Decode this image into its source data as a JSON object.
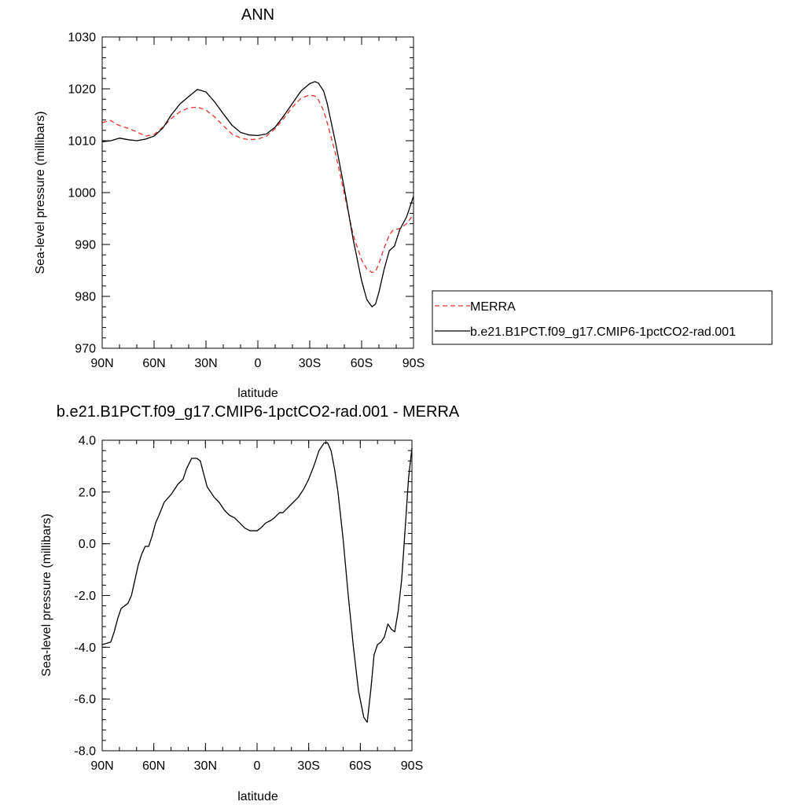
{
  "colors": {
    "merra": "#e8322b",
    "model": "#000000",
    "background": "#ffffff"
  },
  "chart_data": [
    {
      "type": "line",
      "title": "ANN",
      "xlabel": "latitude",
      "ylabel": "Sea-level pressure (millibars)",
      "xlim": [
        -90,
        90
      ],
      "ylim": [
        970,
        1030
      ],
      "x_direction": "90N on left, 90S on right",
      "xticks": [
        {
          "value": -90,
          "label": "90N"
        },
        {
          "value": -60,
          "label": "60N"
        },
        {
          "value": -30,
          "label": "30N"
        },
        {
          "value": 0,
          "label": "0"
        },
        {
          "value": 30,
          "label": "30S"
        },
        {
          "value": 60,
          "label": "60S"
        },
        {
          "value": 90,
          "label": "90S"
        }
      ],
      "yticks": [
        {
          "value": 970,
          "label": "970"
        },
        {
          "value": 980,
          "label": "980"
        },
        {
          "value": 990,
          "label": "990"
        },
        {
          "value": 1000,
          "label": "1000"
        },
        {
          "value": 1010,
          "label": "1010"
        },
        {
          "value": 1020,
          "label": "1020"
        },
        {
          "value": 1030,
          "label": "1030"
        }
      ],
      "grid": false,
      "legend_position": "right",
      "series": [
        {
          "name": "MERRA",
          "style": "dashed",
          "color": "#e8322b",
          "x": [
            -90,
            -85,
            -82,
            -79,
            -75,
            -70,
            -65,
            -60,
            -55,
            -50,
            -45,
            -40,
            -35,
            -30,
            -25,
            -20,
            -15,
            -10,
            -5,
            0,
            5,
            10,
            15,
            20,
            25,
            30,
            33,
            35,
            38,
            40,
            45,
            50,
            55,
            60,
            63,
            66,
            68,
            70,
            73,
            76,
            78,
            80,
            83,
            86,
            90
          ],
          "y": [
            1013.5,
            1013.9,
            1013.2,
            1012.8,
            1012.4,
            1011.7,
            1010.9,
            1011.2,
            1012.6,
            1014.3,
            1015.6,
            1016.3,
            1016.5,
            1015.9,
            1014.6,
            1012.9,
            1011.3,
            1010.5,
            1010.2,
            1010.3,
            1010.9,
            1012.3,
            1014.3,
            1016.5,
            1018.2,
            1018.8,
            1018.6,
            1017.9,
            1015.8,
            1013.6,
            1007.4,
            999.8,
            992.0,
            987.0,
            985.3,
            984.6,
            984.8,
            986.3,
            989.3,
            991.8,
            992.7,
            992.9,
            993.2,
            994.0,
            995.8
          ]
        },
        {
          "name": "b.e21.B1PCT.f09_g17.CMIP6-1pctCO2-rad.001",
          "style": "solid",
          "color": "#000000",
          "x": [
            -90,
            -85,
            -80,
            -75,
            -70,
            -65,
            -60,
            -55,
            -50,
            -45,
            -40,
            -35,
            -30,
            -25,
            -20,
            -15,
            -10,
            -5,
            0,
            5,
            10,
            15,
            20,
            25,
            30,
            33,
            35,
            38,
            40,
            45,
            50,
            55,
            60,
            63,
            66,
            68,
            70,
            73,
            76,
            79,
            82,
            86,
            90
          ],
          "y": [
            1009.8,
            1010.0,
            1010.5,
            1010.2,
            1010.0,
            1010.3,
            1010.9,
            1012.4,
            1015.0,
            1017.1,
            1018.5,
            1019.9,
            1019.4,
            1017.5,
            1015.2,
            1013.0,
            1011.6,
            1011.1,
            1011.0,
            1011.3,
            1012.6,
            1014.8,
            1017.2,
            1019.6,
            1021.0,
            1021.4,
            1021.1,
            1019.6,
            1017.3,
            1009.5,
            1000.8,
            991.2,
            983.0,
            979.4,
            978.0,
            978.5,
            980.8,
            985.2,
            988.8,
            989.7,
            992.8,
            995.3,
            999.3
          ]
        }
      ]
    },
    {
      "type": "line",
      "title": "b.e21.B1PCT.f09_g17.CMIP6-1pctCO2-rad.001 - MERRA",
      "xlabel": "latitude",
      "ylabel": "Sea-level pressure (millibars)",
      "xlim": [
        -90,
        90
      ],
      "ylim": [
        -8,
        4
      ],
      "x_direction": "90N on left, 90S on right",
      "xticks": [
        {
          "value": -90,
          "label": "90N"
        },
        {
          "value": -60,
          "label": "60N"
        },
        {
          "value": -30,
          "label": "30N"
        },
        {
          "value": 0,
          "label": "0"
        },
        {
          "value": 30,
          "label": "30S"
        },
        {
          "value": 60,
          "label": "60S"
        },
        {
          "value": 90,
          "label": "90S"
        }
      ],
      "yticks": [
        {
          "value": -8,
          "label": "-8.0"
        },
        {
          "value": -6,
          "label": "-6.0"
        },
        {
          "value": -4,
          "label": "-4.0"
        },
        {
          "value": -2,
          "label": "-2.0"
        },
        {
          "value": 0,
          "label": "0.0"
        },
        {
          "value": 2,
          "label": "2.0"
        },
        {
          "value": 4,
          "label": "4.0"
        }
      ],
      "grid": false,
      "series": [
        {
          "style": "solid",
          "color": "#000000",
          "x": [
            -90,
            -85,
            -83,
            -81,
            -79,
            -77,
            -75,
            -73,
            -71,
            -69,
            -67,
            -65,
            -63,
            -61,
            -59,
            -57,
            -54,
            -50,
            -46,
            -43,
            -41,
            -38,
            -35,
            -33,
            -31,
            -29,
            -27,
            -25,
            -22,
            -19,
            -16,
            -13,
            -10,
            -7,
            -4,
            -1,
            0,
            2,
            5,
            8,
            10,
            13,
            15,
            18,
            21,
            24,
            27,
            30,
            33,
            36,
            39,
            41,
            43,
            45,
            47,
            50,
            53,
            56,
            59,
            62,
            64,
            66,
            67,
            68,
            70,
            72,
            74,
            76,
            78,
            80,
            82,
            84,
            86,
            88,
            90
          ],
          "y": [
            -3.9,
            -3.8,
            -3.4,
            -2.9,
            -2.5,
            -2.4,
            -2.3,
            -2.0,
            -1.4,
            -0.8,
            -0.4,
            -0.1,
            -0.1,
            0.3,
            0.8,
            1.1,
            1.6,
            1.9,
            2.3,
            2.5,
            2.9,
            3.3,
            3.3,
            3.2,
            2.7,
            2.2,
            2.0,
            1.8,
            1.6,
            1.3,
            1.1,
            1.0,
            0.8,
            0.6,
            0.5,
            0.5,
            0.5,
            0.6,
            0.8,
            0.9,
            1.0,
            1.2,
            1.2,
            1.4,
            1.6,
            1.8,
            2.1,
            2.5,
            3.0,
            3.6,
            3.9,
            3.9,
            3.6,
            2.9,
            2.0,
            0.2,
            -2.0,
            -4.0,
            -5.7,
            -6.7,
            -6.9,
            -5.7,
            -5.0,
            -4.3,
            -3.9,
            -3.8,
            -3.6,
            -3.1,
            -3.3,
            -3.4,
            -2.6,
            -1.4,
            0.5,
            2.5,
            3.7
          ]
        }
      ]
    }
  ]
}
